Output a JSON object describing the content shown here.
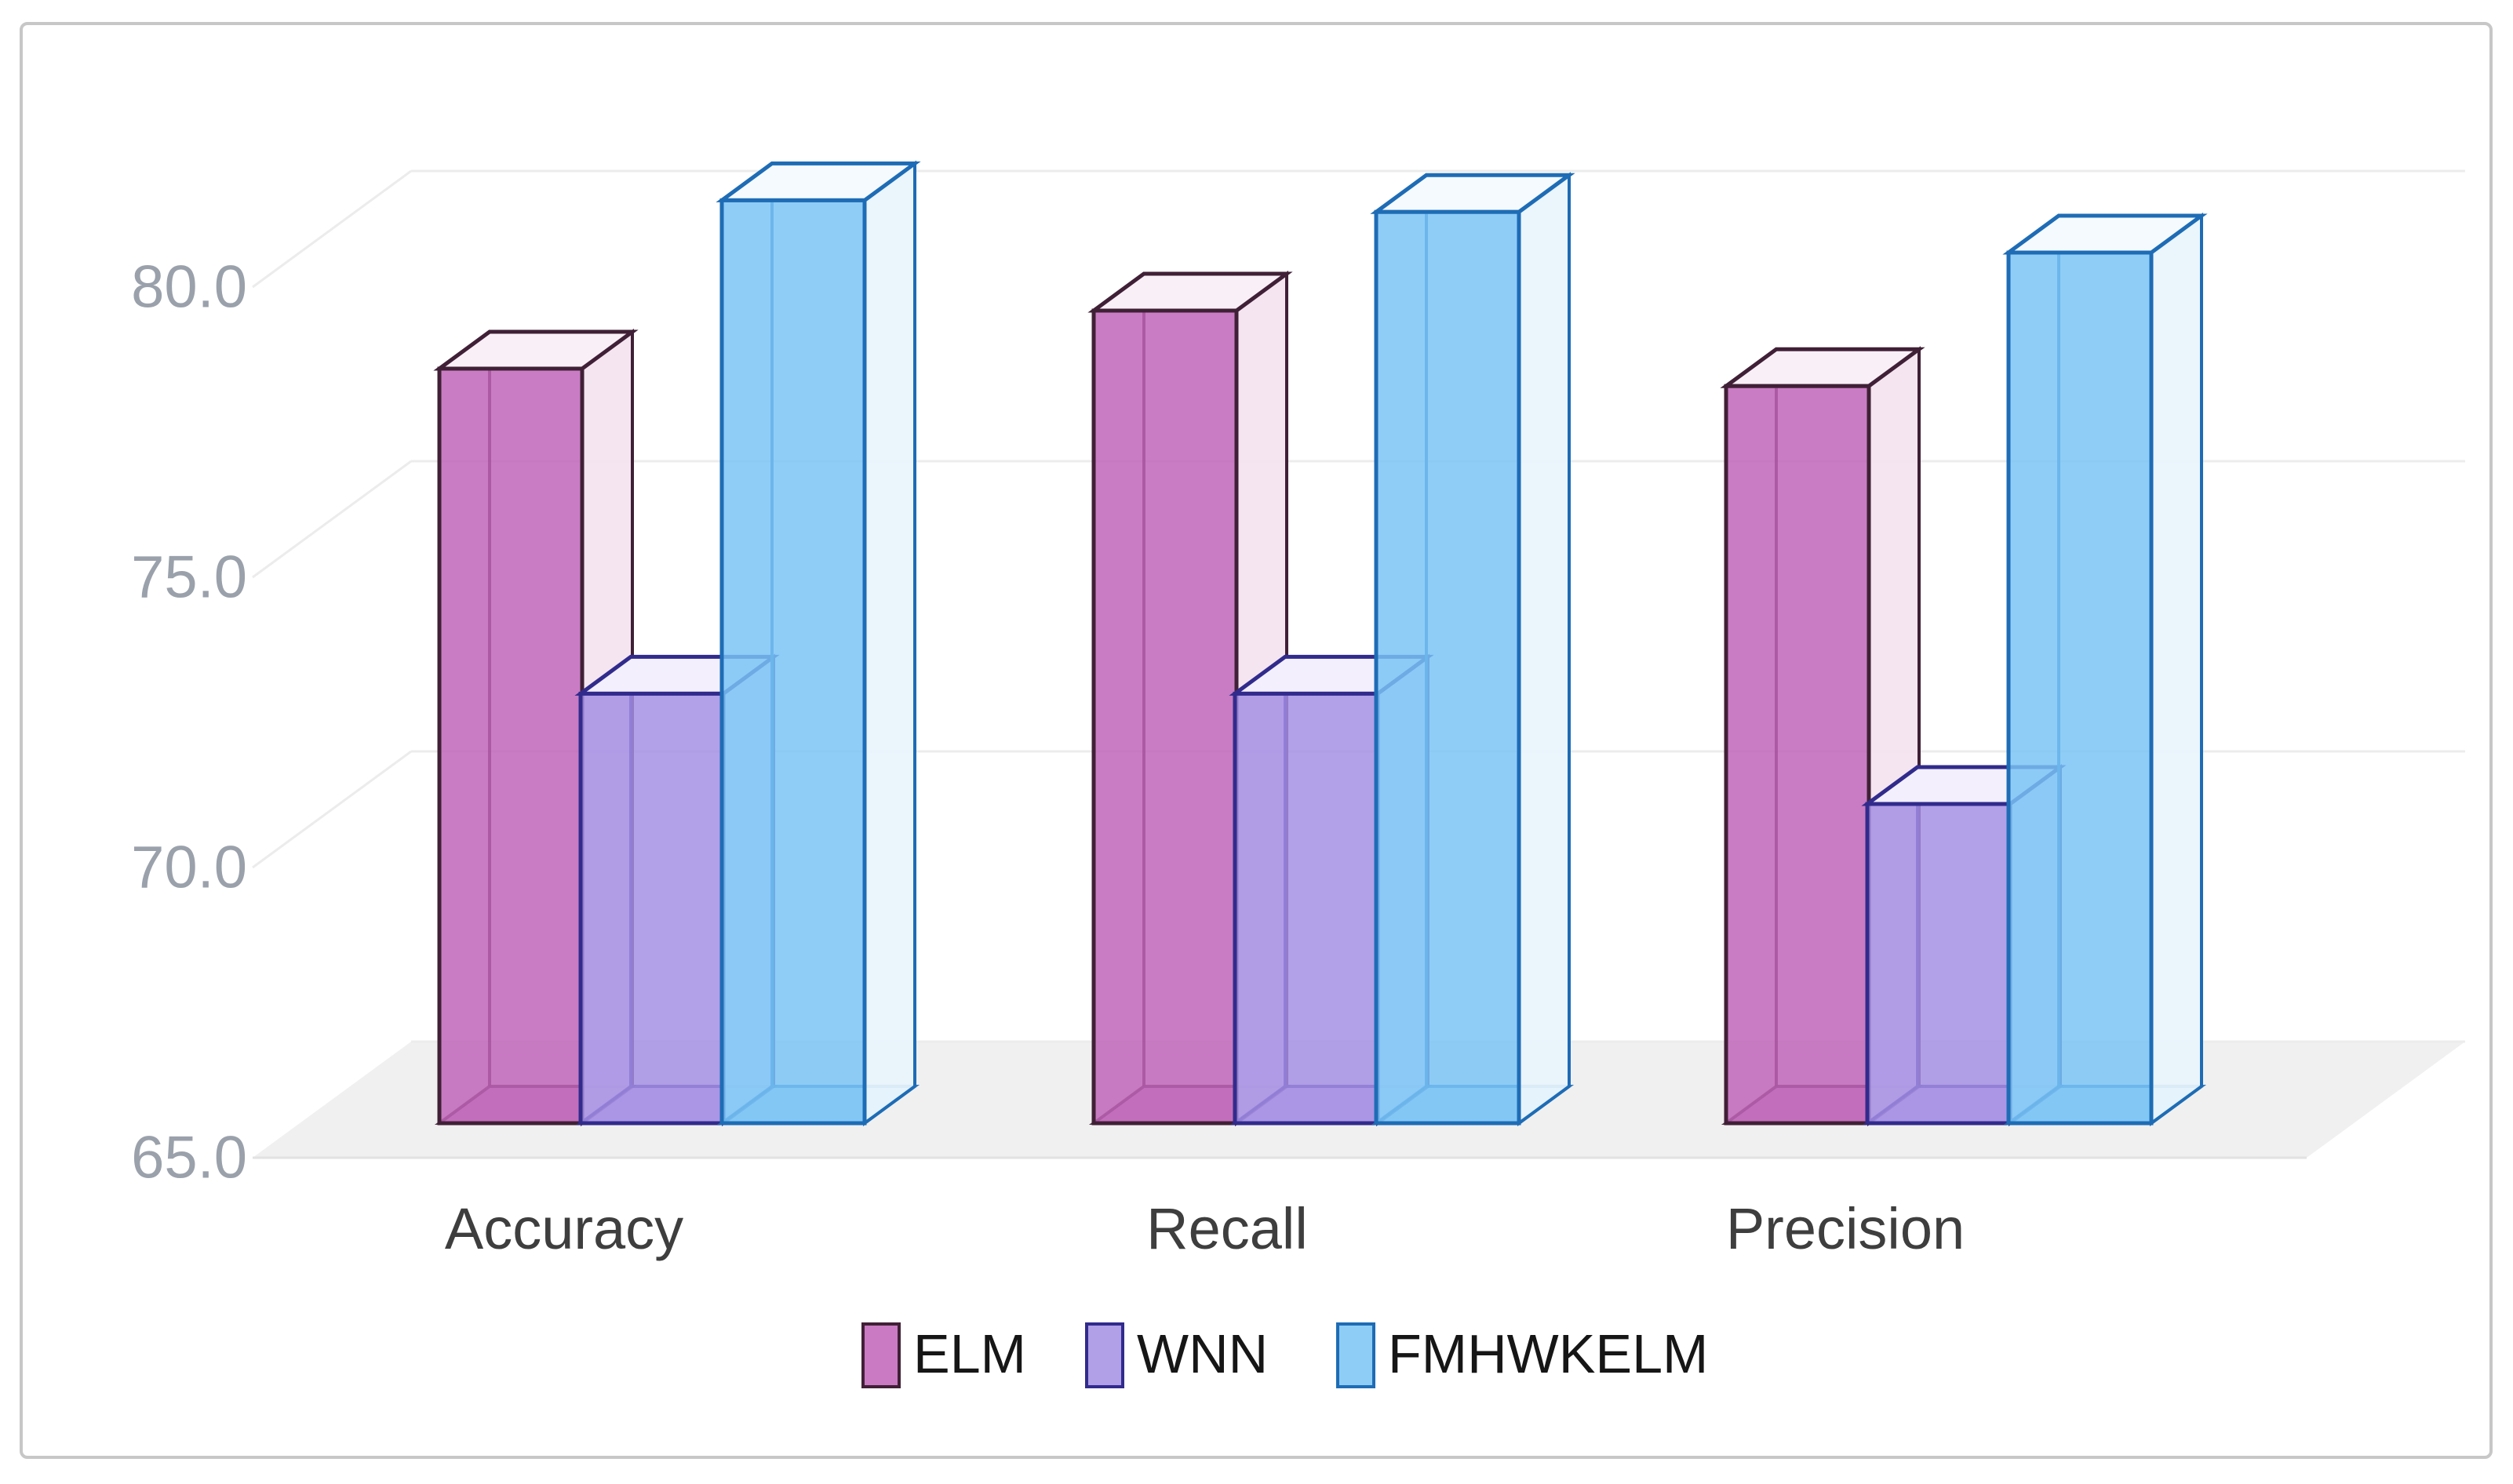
{
  "figure": {
    "background": "#ffffff",
    "frame_border_color": "#c7c7c7",
    "plot_background": "#ffffff"
  },
  "chart_data": {
    "type": "bar",
    "projection": "3d",
    "title": "",
    "xlabel": "",
    "ylabel": "",
    "categories": [
      "Accuracy",
      "Recall",
      "Precision"
    ],
    "series": [
      {
        "name": "ELM",
        "values": [
          78.0,
          79.0,
          77.7
        ],
        "color": "#bf63b8",
        "edge_color": "#402036",
        "top_color": "#f9eff7",
        "side_color": "#f3e3ef"
      },
      {
        "name": "WNN",
        "values": [
          72.4,
          72.4,
          70.5
        ],
        "color": "#a38ee4",
        "edge_color": "#312b8c",
        "top_color": "#f3effd",
        "side_color": "#eae5f9"
      },
      {
        "name": "FMHWKELM",
        "values": [
          80.9,
          80.7,
          80.0
        ],
        "color": "#7ac4f5",
        "edge_color": "#1e6cb5",
        "top_color": "#f4fafe",
        "side_color": "#e8f4fc"
      }
    ],
    "y_axis": {
      "min": 65,
      "max": 81.5,
      "ticks": [
        65,
        70,
        75,
        80
      ],
      "tick_labels": [
        "65.0",
        "70.0",
        "75.0",
        "80.0"
      ],
      "tick_color": "#9aa1ab"
    },
    "grid": true,
    "gridline_color": "#ececec",
    "floor_color": "#f0f0f0",
    "floor_edge_color": "#e2e2e2",
    "category_label_color": "#3e3e3e",
    "legend": {
      "position": "bottom",
      "entries": [
        "ELM",
        "WNN",
        "FMHWKELM"
      ],
      "text_color": "#161616"
    }
  }
}
